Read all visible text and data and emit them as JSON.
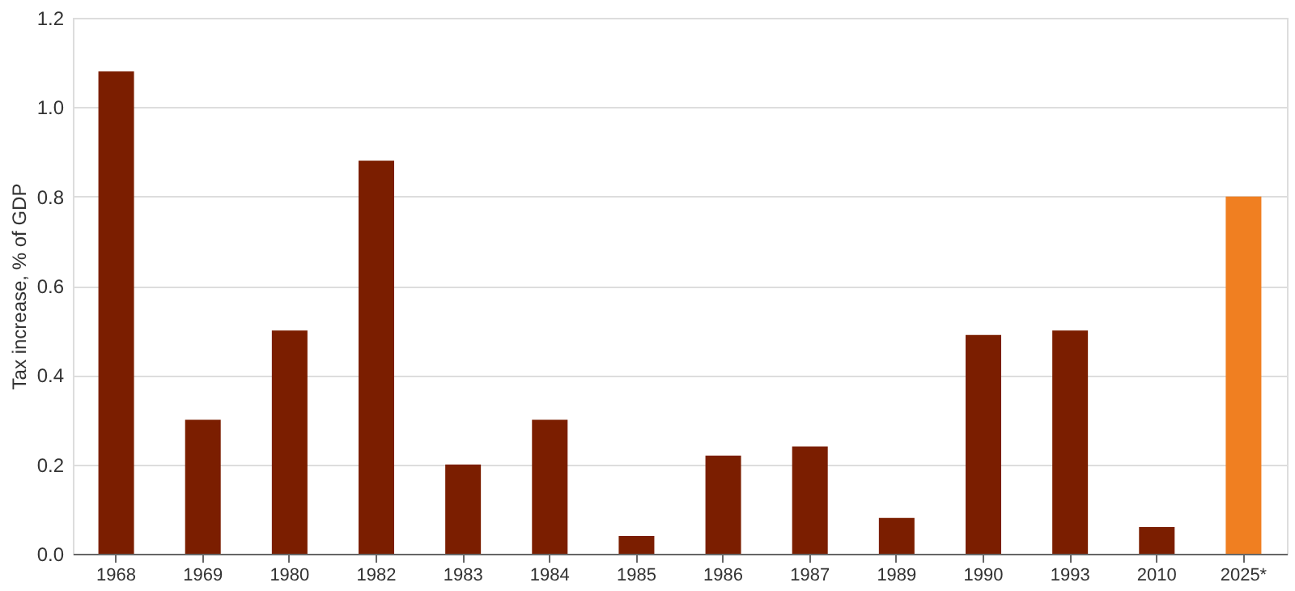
{
  "chart_data": {
    "type": "bar",
    "ylabel": "Tax increase, % of GDP",
    "categories": [
      "1968",
      "1969",
      "1980",
      "1982",
      "1983",
      "1984",
      "1985",
      "1986",
      "1987",
      "1989",
      "1990",
      "1993",
      "2010",
      "2025*"
    ],
    "values": [
      1.08,
      0.3,
      0.5,
      0.88,
      0.2,
      0.3,
      0.04,
      0.22,
      0.24,
      0.08,
      0.49,
      0.5,
      0.06,
      0.8
    ],
    "colors": [
      "#7b1e00",
      "#7b1e00",
      "#7b1e00",
      "#7b1e00",
      "#7b1e00",
      "#7b1e00",
      "#7b1e00",
      "#7b1e00",
      "#7b1e00",
      "#7b1e00",
      "#7b1e00",
      "#7b1e00",
      "#7b1e00",
      "#f07f21"
    ],
    "ylim": [
      0,
      1.2
    ],
    "yticks": [
      {
        "value": 0,
        "label": "0.0"
      },
      0.2,
      0.4,
      0.6,
      0.8,
      {
        "value": 1,
        "label": "1.0"
      },
      1.2
    ],
    "grid": "y"
  }
}
